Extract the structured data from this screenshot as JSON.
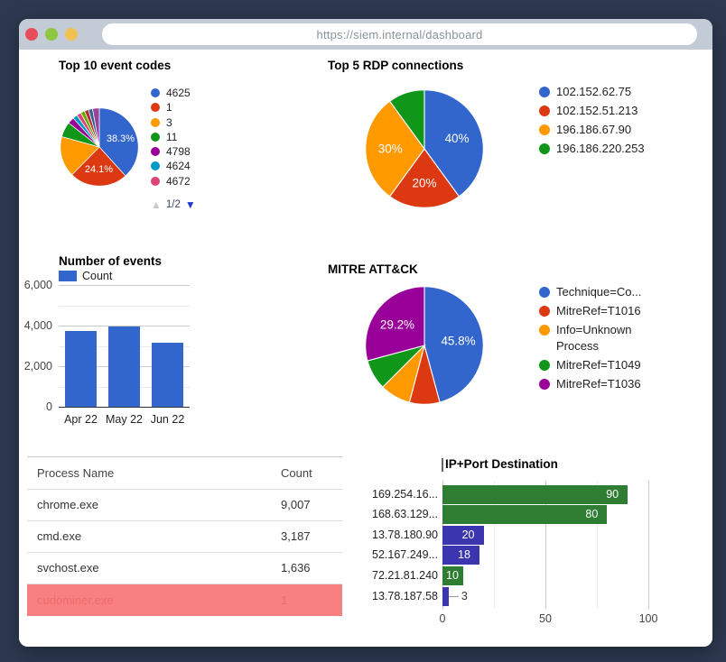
{
  "browser": {
    "url": "https://siem.internal/dashboard"
  },
  "charts": {
    "event_codes": {
      "type": "pie",
      "title": "Top 10 event codes",
      "pagination": "1/2",
      "legend_visible_count": 7,
      "slices": [
        {
          "label": "4625",
          "value": 38.3,
          "color": "#3366cc",
          "pct_label": "38.3%"
        },
        {
          "label": "1",
          "value": 24.1,
          "color": "#dc3912",
          "pct_label": "24.1%"
        },
        {
          "label": "3",
          "value": 16.9,
          "color": "#ff9900"
        },
        {
          "label": "11",
          "value": 6.3,
          "color": "#109618"
        },
        {
          "label": "4798",
          "value": 2.7,
          "color": "#990099"
        },
        {
          "label": "4624",
          "value": 1.9,
          "color": "#0099c6"
        },
        {
          "label": "4672",
          "value": 1.9,
          "color": "#dd4477"
        },
        {
          "label": "",
          "value": 1.7,
          "color": "#66aa00"
        },
        {
          "label": "",
          "value": 1.7,
          "color": "#b82e2e"
        },
        {
          "label": "",
          "value": 1.7,
          "color": "#316395"
        },
        {
          "label": "",
          "value": 2.8,
          "color": "#994499"
        }
      ]
    },
    "rdp": {
      "type": "pie",
      "title": "Top 5 RDP connections",
      "slices": [
        {
          "label": "102.152.62.75",
          "value": 40,
          "color": "#3366cc",
          "pct_label": "40%"
        },
        {
          "label": "102.152.51.213",
          "value": 20,
          "color": "#dc3912",
          "pct_label": "20%"
        },
        {
          "label": "196.186.67.90",
          "value": 30,
          "color": "#ff9900",
          "pct_label": "30%"
        },
        {
          "label": "196.186.220.253",
          "value": 10,
          "color": "#109618"
        }
      ]
    },
    "mitre": {
      "type": "pie",
      "title": "MITRE ATT&CK",
      "slices": [
        {
          "label": "Technique=Co...",
          "value": 45.8,
          "color": "#3366cc",
          "pct_label": "45.8%"
        },
        {
          "label": "MitreRef=T1016",
          "value": 8.3,
          "color": "#dc3912"
        },
        {
          "label": "Info=Unknown Process",
          "value": 8.4,
          "color": "#ff9900"
        },
        {
          "label": "MitreRef=T1049",
          "value": 8.3,
          "color": "#109618"
        },
        {
          "label": "MitreRef=T1036",
          "value": 29.2,
          "color": "#990099",
          "pct_label": "29.2%"
        }
      ]
    },
    "events": {
      "type": "bar",
      "title": "Number of events",
      "legend": "Count",
      "color": "#3366cc",
      "categories": [
        "Apr 22",
        "May 22",
        "Jun 22"
      ],
      "values": [
        3720,
        3980,
        3160
      ],
      "ymax": 6000,
      "y_ticks": [
        {
          "value": 6000,
          "label": "6,000"
        },
        {
          "value": 4000,
          "label": "4,000"
        },
        {
          "value": 2000,
          "label": "2,000"
        },
        {
          "value": 0,
          "label": "0"
        }
      ],
      "y_minor_ticks": [
        5000,
        3000,
        1000
      ]
    },
    "ipport": {
      "type": "bar-horizontal",
      "title": "IP+Port Destination",
      "categories": [
        "169.254.16...",
        "168.63.129...",
        "13.78.180.90",
        "52.167.249...",
        "72.21.81.240",
        "13.78.187.58"
      ],
      "values": [
        90,
        80,
        20,
        18,
        10,
        3
      ],
      "colors": [
        "#2e7d32",
        "#2e7d32",
        "#3b35b0",
        "#3b35b0",
        "#2e7d32",
        "#3b35b0"
      ],
      "xmax": 100,
      "x_ticks": [
        {
          "value": 0,
          "label": "0"
        },
        {
          "value": 50,
          "label": "50"
        },
        {
          "value": 100,
          "label": "100"
        }
      ],
      "x_minor_ticks": [
        25,
        75
      ]
    }
  },
  "table": {
    "headers": [
      "Process Name",
      "Count"
    ],
    "rows": [
      {
        "name": "chrome.exe",
        "count": "9,007"
      },
      {
        "name": "cmd.exe",
        "count": "3,187"
      },
      {
        "name": "svchost.exe",
        "count": "1,636"
      },
      {
        "name": "cudominer.exe",
        "count": "1",
        "alert": true
      }
    ]
  }
}
